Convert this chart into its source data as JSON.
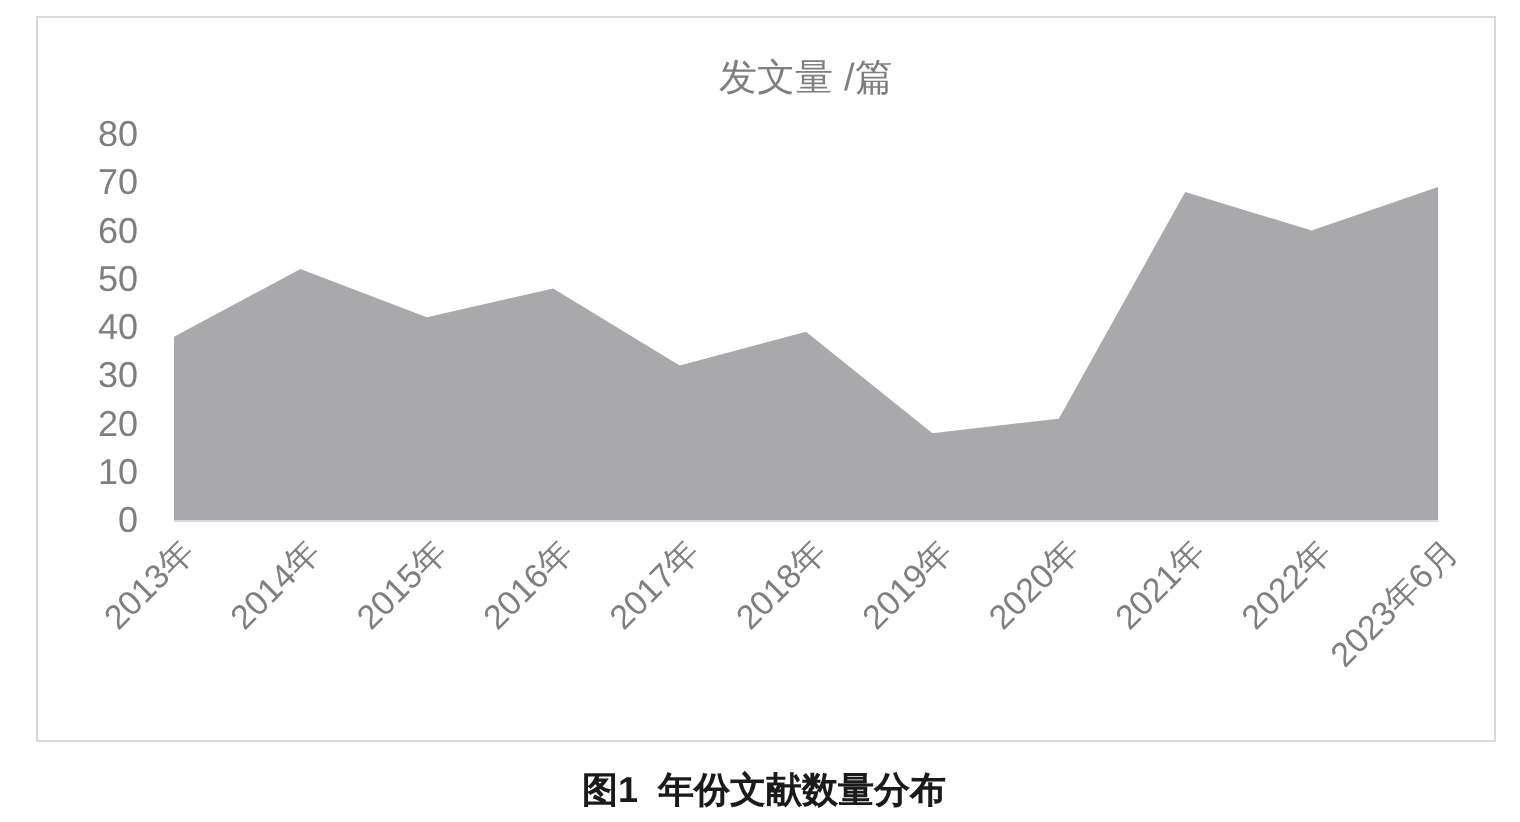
{
  "chart_data": {
    "type": "area",
    "title": "发文量 /篇",
    "categories": [
      "2013年",
      "2014年",
      "2015年",
      "2016年",
      "2017年",
      "2018年",
      "2019年",
      "2020年",
      "2021年",
      "2022年",
      "2023年6月"
    ],
    "values": [
      38,
      52,
      42,
      48,
      32,
      39,
      18,
      21,
      68,
      60,
      69
    ],
    "color": "#a9a9ab",
    "ylim": [
      0,
      80
    ],
    "yticks": [
      0,
      10,
      20,
      30,
      40,
      50,
      60,
      70,
      80
    ],
    "annotations": [
      "图1  年份文献数量分布"
    ]
  }
}
